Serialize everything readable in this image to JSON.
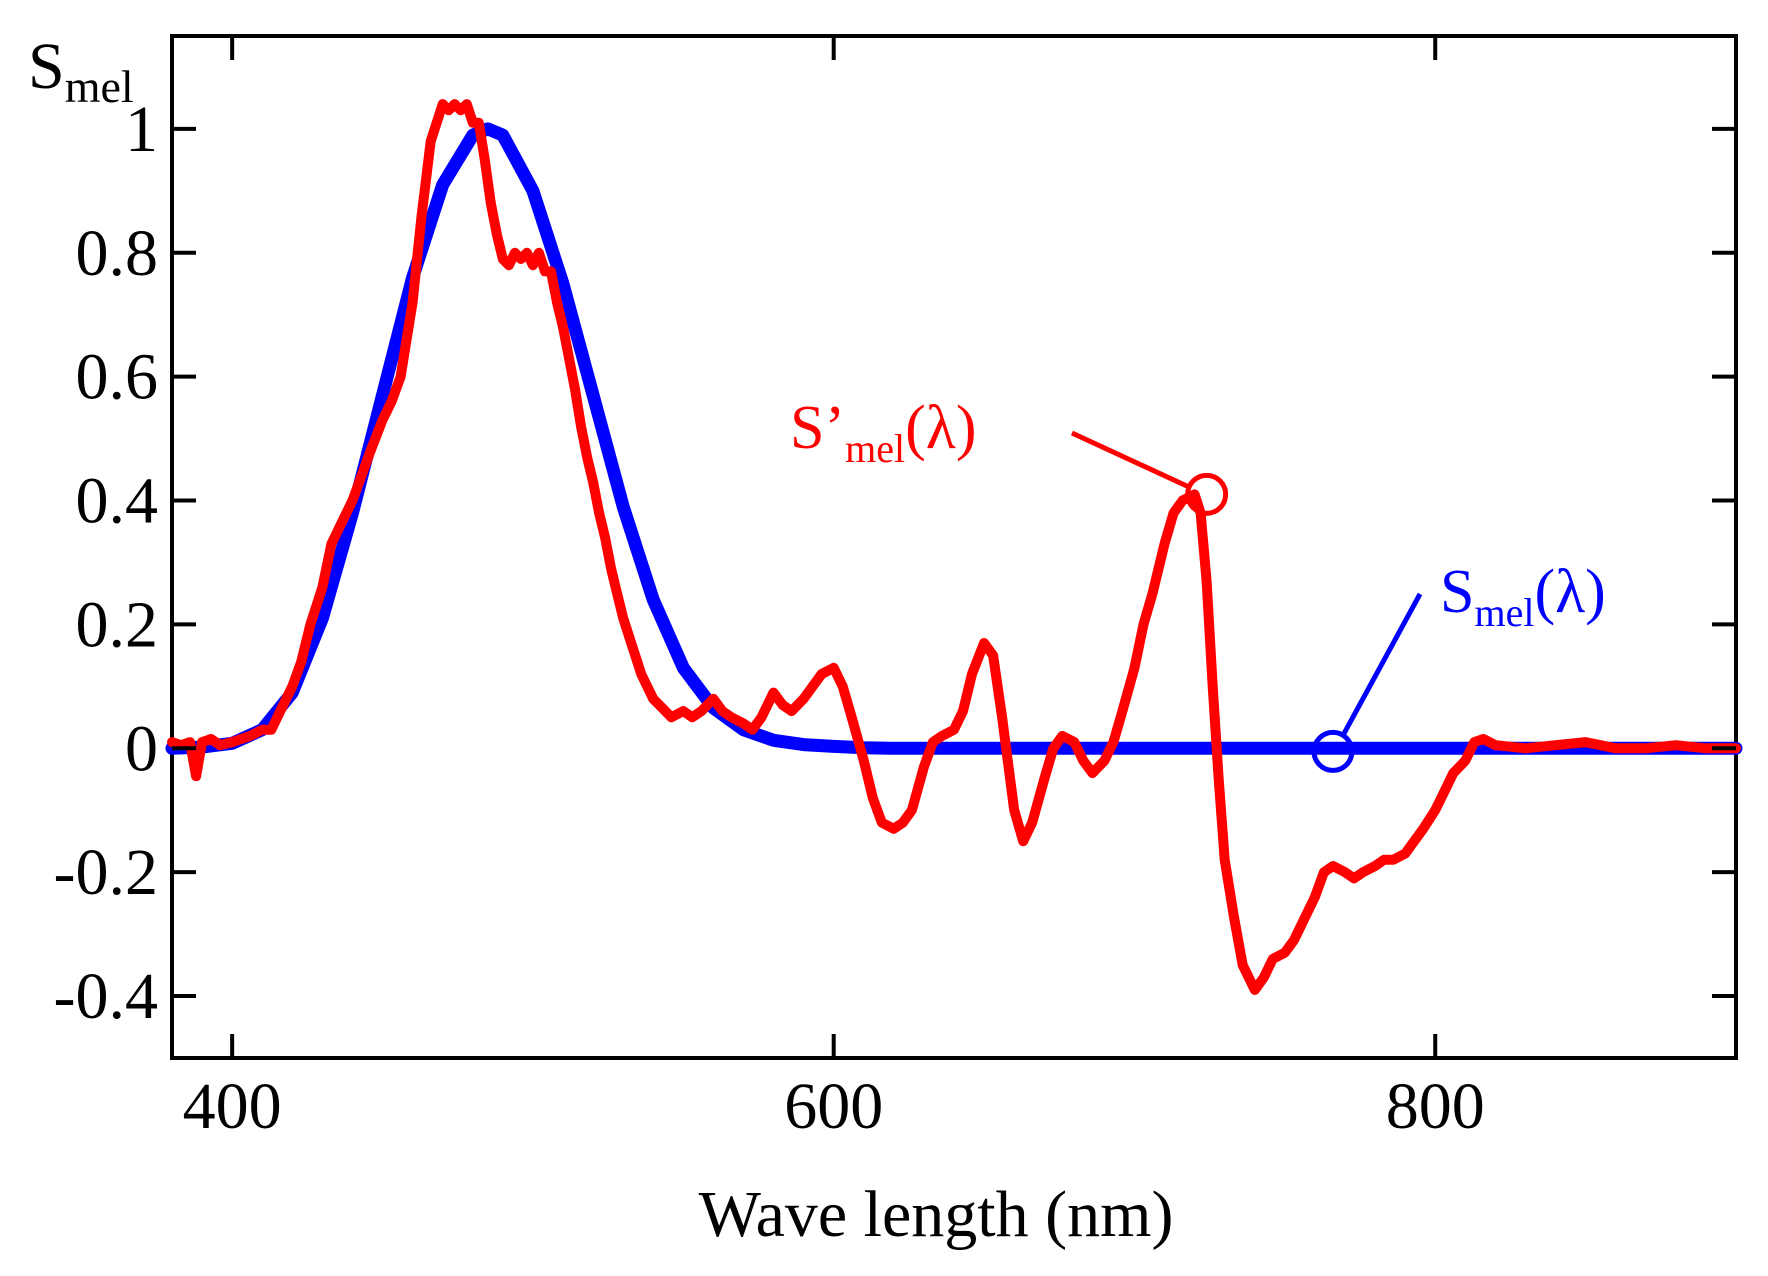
{
  "chart_data": {
    "type": "line",
    "title": "",
    "xlabel": "Wave length (nm)",
    "ylabel": {
      "main": "S",
      "sub": "mel"
    },
    "xlim": [
      380,
      900
    ],
    "ylim": [
      -0.5,
      1.15
    ],
    "xticks": [
      400,
      600,
      800
    ],
    "xtick_labels": [
      "400",
      "600",
      "800"
    ],
    "yticks": [
      -0.4,
      -0.2,
      0,
      0.2,
      0.4,
      0.6,
      0.8,
      1
    ],
    "ytick_labels": [
      "-0.4",
      "-0.2",
      "0",
      "0.2",
      "0.4",
      "0.6",
      "0.8",
      "1"
    ],
    "grid": false,
    "series": [
      {
        "name": "S_mel(λ)",
        "color": "#0000ff",
        "x": [
          380,
          390,
          400,
          410,
          420,
          430,
          440,
          450,
          460,
          470,
          480,
          485,
          490,
          500,
          510,
          520,
          530,
          540,
          550,
          560,
          570,
          580,
          590,
          600,
          610,
          620,
          640,
          660,
          700,
          750,
          800,
          850,
          900
        ],
        "y": [
          0.0,
          0.002,
          0.008,
          0.03,
          0.09,
          0.21,
          0.38,
          0.57,
          0.76,
          0.91,
          0.99,
          1.0,
          0.99,
          0.9,
          0.75,
          0.57,
          0.39,
          0.24,
          0.13,
          0.065,
          0.03,
          0.013,
          0.006,
          0.003,
          0.001,
          0.0,
          0.0,
          0.0,
          0.0,
          0.0,
          0.0,
          0.0,
          0.0
        ]
      },
      {
        "name": "S'_mel(λ)",
        "color": "#ff0000",
        "x": [
          380,
          383,
          386,
          388,
          390,
          393,
          396,
          400,
          403,
          406,
          410,
          413,
          416,
          420,
          423,
          426,
          430,
          433,
          436,
          440,
          443,
          446,
          450,
          453,
          456,
          460,
          463,
          466,
          470,
          472,
          474,
          476,
          478,
          480,
          482,
          484,
          486,
          488,
          490,
          492,
          494,
          496,
          498,
          500,
          502,
          504,
          506,
          508,
          510,
          512,
          514,
          516,
          518,
          520,
          522,
          524,
          526,
          528,
          530,
          532,
          534,
          536,
          538,
          540,
          543,
          546,
          550,
          553,
          556,
          560,
          563,
          566,
          570,
          573,
          576,
          580,
          583,
          586,
          590,
          593,
          596,
          600,
          603,
          606,
          610,
          613,
          616,
          620,
          623,
          626,
          630,
          633,
          636,
          640,
          643,
          646,
          650,
          653,
          656,
          660,
          663,
          666,
          670,
          673,
          676,
          680,
          683,
          686,
          690,
          693,
          696,
          700,
          703,
          706,
          710,
          713,
          716,
          720,
          722,
          724,
          726,
          728,
          730,
          733,
          736,
          740,
          743,
          746,
          750,
          753,
          756,
          760,
          763,
          766,
          770,
          773,
          776,
          780,
          783,
          786,
          790,
          793,
          796,
          800,
          803,
          806,
          810,
          813,
          816,
          820,
          830,
          840,
          850,
          860,
          870,
          880,
          890,
          900
        ],
        "y": [
          0.01,
          0.005,
          0.01,
          -0.045,
          0.01,
          0.015,
          0.005,
          0.01,
          0.015,
          0.02,
          0.03,
          0.03,
          0.06,
          0.1,
          0.14,
          0.2,
          0.26,
          0.33,
          0.36,
          0.4,
          0.44,
          0.48,
          0.53,
          0.56,
          0.6,
          0.72,
          0.86,
          0.98,
          1.04,
          1.03,
          1.04,
          1.03,
          1.04,
          1.01,
          1.01,
          0.95,
          0.88,
          0.83,
          0.79,
          0.78,
          0.8,
          0.79,
          0.8,
          0.78,
          0.8,
          0.77,
          0.77,
          0.72,
          0.68,
          0.63,
          0.58,
          0.52,
          0.47,
          0.43,
          0.38,
          0.34,
          0.29,
          0.25,
          0.21,
          0.18,
          0.15,
          0.12,
          0.1,
          0.08,
          0.065,
          0.05,
          0.06,
          0.05,
          0.06,
          0.08,
          0.06,
          0.05,
          0.04,
          0.03,
          0.05,
          0.09,
          0.07,
          0.06,
          0.08,
          0.1,
          0.12,
          0.13,
          0.1,
          0.05,
          -0.02,
          -0.08,
          -0.12,
          -0.13,
          -0.12,
          -0.1,
          -0.03,
          0.01,
          0.02,
          0.03,
          0.06,
          0.12,
          0.17,
          0.15,
          0.05,
          -0.1,
          -0.15,
          -0.12,
          -0.05,
          0.0,
          0.02,
          0.01,
          -0.02,
          -0.04,
          -0.02,
          0.01,
          0.06,
          0.13,
          0.2,
          0.25,
          0.33,
          0.38,
          0.4,
          0.41,
          0.38,
          0.27,
          0.1,
          -0.05,
          -0.18,
          -0.27,
          -0.35,
          -0.39,
          -0.37,
          -0.34,
          -0.33,
          -0.31,
          -0.28,
          -0.24,
          -0.2,
          -0.19,
          -0.2,
          -0.21,
          -0.2,
          -0.19,
          -0.18,
          -0.18,
          -0.17,
          -0.15,
          -0.13,
          -0.1,
          -0.07,
          -0.04,
          -0.02,
          0.01,
          0.015,
          0.005,
          0.0,
          0.005,
          0.01,
          0.0,
          0.0,
          0.005,
          0.0,
          0.0
        ]
      }
    ],
    "annotations": [
      {
        "name": "S'mel-annotation",
        "main": "S’",
        "sub": "mel",
        "suffix": "(λ)",
        "color": "#ff0000",
        "marker_x": 724,
        "marker_y": 0.41
      },
      {
        "name": "Smel-annotation",
        "main": "S",
        "sub": "mel",
        "suffix": "(λ)",
        "color": "#0000ff",
        "marker_x": 766,
        "marker_y": -0.005
      }
    ]
  }
}
